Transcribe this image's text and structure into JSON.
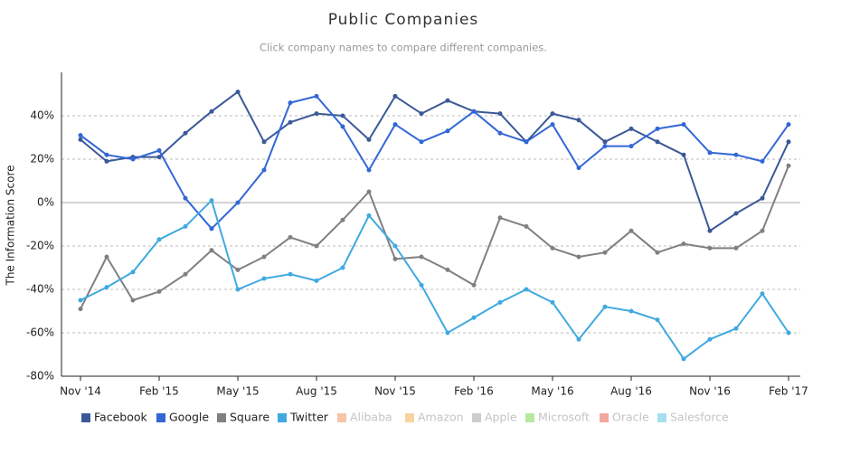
{
  "chart_data": {
    "type": "line",
    "title": "Public Companies",
    "subtitle": "Click company names to compare different companies.",
    "y_label": "The Information Score",
    "categories": [
      "Nov '14",
      null,
      null,
      "Feb '15",
      null,
      null,
      "May '15",
      null,
      null,
      "Aug '15",
      null,
      null,
      "Nov '15",
      null,
      null,
      "Feb '16",
      null,
      null,
      "May '16",
      null,
      null,
      "Aug '16",
      null,
      null,
      "Nov '16",
      null,
      null,
      "Feb '17"
    ],
    "ylim": [
      -80,
      60
    ],
    "yticks": [
      {
        "value": -80,
        "label": "-80%"
      },
      {
        "value": -60,
        "label": "-60%"
      },
      {
        "value": -40,
        "label": "-40%"
      },
      {
        "value": -20,
        "label": "-20%"
      },
      {
        "value": 0,
        "label": "0%"
      },
      {
        "value": 20,
        "label": "20%"
      },
      {
        "value": 40,
        "label": "40%"
      }
    ],
    "grid": true,
    "series": [
      {
        "name": "Facebook",
        "color": "#3b5998",
        "values": [
          29,
          19,
          21,
          21,
          32,
          42,
          51,
          28,
          37,
          41,
          40,
          29,
          49,
          41,
          47,
          42,
          41,
          28,
          41,
          38,
          28,
          34,
          28,
          22,
          -13,
          -5,
          2,
          28
        ]
      },
      {
        "name": "Google",
        "color": "#3367d6",
        "values": [
          31,
          22,
          20,
          24,
          2,
          -12,
          0,
          15,
          46,
          49,
          35,
          15,
          36,
          28,
          33,
          42,
          32,
          28,
          36,
          16,
          26,
          26,
          34,
          36,
          23,
          22,
          19,
          36
        ]
      },
      {
        "name": "Square",
        "color": "#808080",
        "values": [
          -49,
          -25,
          -45,
          -41,
          -33,
          -22,
          -31,
          -25,
          -16,
          -20,
          -8,
          5,
          -26,
          -25,
          -31,
          -38,
          -7,
          -11,
          -21,
          -25,
          -23,
          -13,
          -23,
          -19,
          -21,
          -21,
          -13,
          17
        ]
      },
      {
        "name": "Twitter",
        "color": "#3fa9e0",
        "values": [
          -45,
          -39,
          -32,
          -17,
          -11,
          1,
          -40,
          -35,
          -33,
          -36,
          -30,
          -6,
          -20,
          -38,
          -60,
          -53,
          -46,
          -40,
          -46,
          -63,
          -48,
          -50,
          -54,
          -72,
          -63,
          -58,
          -42,
          -60
        ]
      }
    ],
    "hidden_series": [
      {
        "name": "Alibaba",
        "color": "#f5c6a5"
      },
      {
        "name": "Amazon",
        "color": "#f8d3a0"
      },
      {
        "name": "Apple",
        "color": "#cccccc"
      },
      {
        "name": "Microsoft",
        "color": "#b9e6a0"
      },
      {
        "name": "Oracle",
        "color": "#f2a8a0"
      },
      {
        "name": "Salesforce",
        "color": "#a8def0"
      }
    ]
  }
}
